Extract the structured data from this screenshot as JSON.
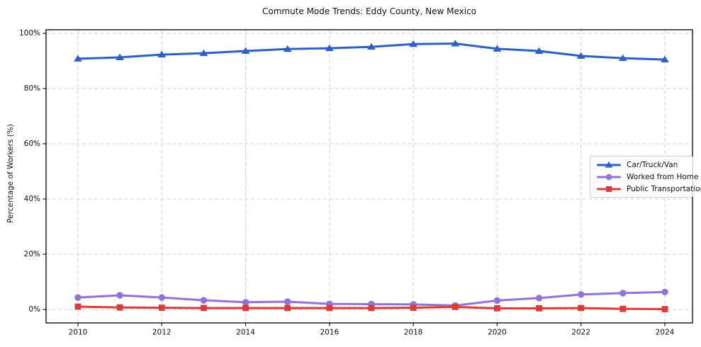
{
  "chart_data": {
    "type": "line",
    "title": "Commute Mode Trends: Eddy County, New Mexico",
    "xlabel": "",
    "ylabel": "Percentage of Workers (%)",
    "x": [
      2010,
      2011,
      2012,
      2013,
      2014,
      2015,
      2016,
      2017,
      2018,
      2019,
      2020,
      2021,
      2022,
      2023,
      2024
    ],
    "series": [
      {
        "name": "Car/Truck/Van",
        "color": "#2d5fc8",
        "marker": "triangle-up",
        "values": [
          90.8,
          91.3,
          92.3,
          92.8,
          93.6,
          94.3,
          94.6,
          95.1,
          96.1,
          96.3,
          94.4,
          93.6,
          91.8,
          91.0,
          90.5
        ]
      },
      {
        "name": "Worked from Home",
        "color": "#9370db",
        "marker": "circle",
        "values": [
          4.3,
          5.1,
          4.3,
          3.3,
          2.6,
          2.8,
          2.0,
          1.9,
          1.8,
          1.4,
          3.2,
          4.1,
          5.4,
          5.9,
          6.3
        ]
      },
      {
        "name": "Public Transportation",
        "color": "#dd3a3a",
        "marker": "square",
        "values": [
          1.0,
          0.7,
          0.6,
          0.5,
          0.5,
          0.5,
          0.5,
          0.5,
          0.6,
          0.9,
          0.4,
          0.4,
          0.5,
          0.2,
          0.1
        ]
      }
    ],
    "x_ticks": [
      2010,
      2012,
      2014,
      2016,
      2018,
      2020,
      2022,
      2024
    ],
    "x_tick_labels": [
      "2010",
      "2012",
      "2014",
      "2016",
      "2018",
      "2020",
      "2022",
      "2024"
    ],
    "y_ticks": [
      0,
      20,
      40,
      60,
      80,
      100
    ],
    "y_tick_labels": [
      "0%",
      "20%",
      "40%",
      "60%",
      "80%",
      "100%"
    ],
    "xlim": [
      2009.24,
      2024.66
    ],
    "ylim": [
      -4.9,
      101.3
    ],
    "grid": {
      "horizontal": true,
      "vertical": true,
      "style": "dashed"
    },
    "legend_position": "center-right",
    "colors": {
      "grid": "#c9c9c9",
      "spine": "#000000",
      "text": "#111111",
      "legend_border": "#cccccc",
      "background": "#ffffff"
    }
  }
}
